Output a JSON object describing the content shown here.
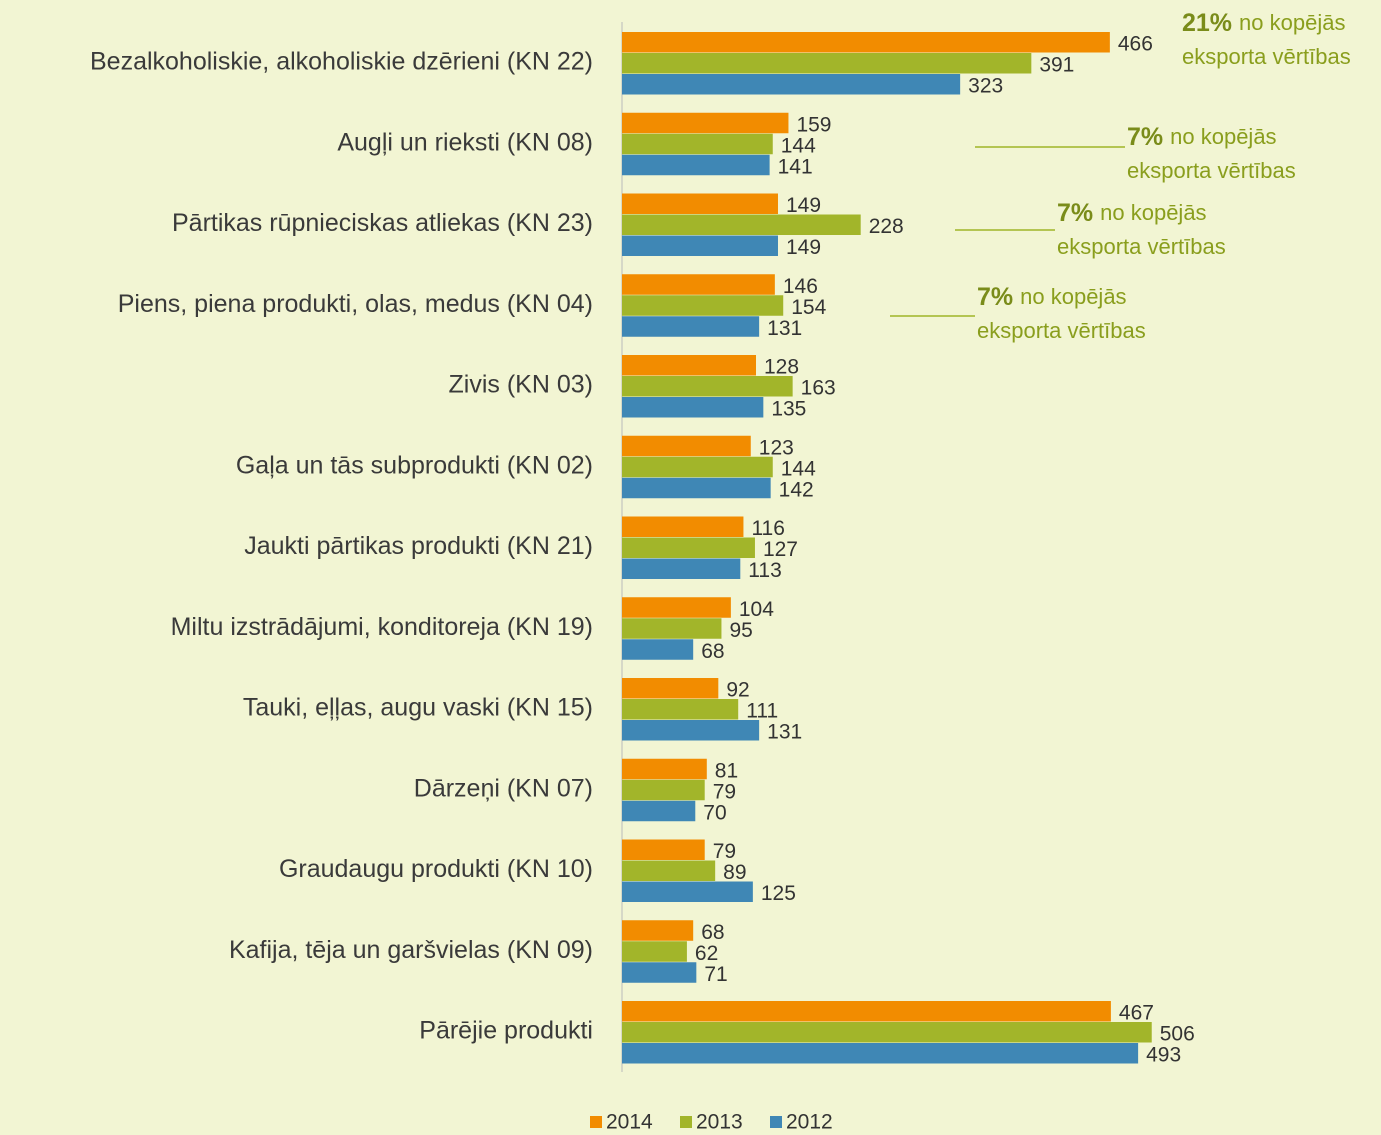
{
  "chart_data": {
    "type": "hbar",
    "categories": [
      "Bezalkoholiskie, alkoholiskie dzērieni (KN 22)",
      "Augļi un rieksti (KN 08)",
      "Pārtikas rūpnieciskas atliekas (KN 23)",
      "Piens, piena produkti, olas, medus (KN 04)",
      "Zivis (KN 03)",
      "Gaļa un tās subprodukti (KN 02)",
      "Jaukti pārtikas produkti (KN 21)",
      "Miltu izstrādājumi, konditoreja (KN 19)",
      "Tauki, eļļas, augu vaski (KN 15)",
      "Dārzeņi (KN 07)",
      "Graudaugu produkti (KN 10)",
      "Kafija, tēja un garšvielas (KN 09)",
      "Pārējie produkti"
    ],
    "series": [
      {
        "name": "2014",
        "color": "#f28c00",
        "values": [
          466,
          159,
          149,
          146,
          128,
          123,
          116,
          104,
          92,
          81,
          79,
          68,
          467
        ]
      },
      {
        "name": "2013",
        "color": "#a2b52a",
        "values": [
          391,
          144,
          228,
          154,
          163,
          144,
          127,
          95,
          111,
          79,
          89,
          62,
          506
        ]
      },
      {
        "name": "2012",
        "color": "#3f87b5",
        "values": [
          323,
          141,
          149,
          131,
          135,
          142,
          113,
          68,
          131,
          70,
          125,
          71,
          493
        ]
      }
    ],
    "xlim": [
      0,
      725
    ],
    "annotations": [
      {
        "percent": "21%",
        "text": "no kopējās",
        "text2": "eksporta vērtības"
      },
      {
        "percent": "7%",
        "text": "no kopējās",
        "text2": "eksporta vērtības"
      },
      {
        "percent": "7%",
        "text": "no kopējās",
        "text2": "eksporta vērtības"
      },
      {
        "percent": "7%",
        "text": "no kopējās",
        "text2": "eksporta vērtības"
      }
    ]
  }
}
